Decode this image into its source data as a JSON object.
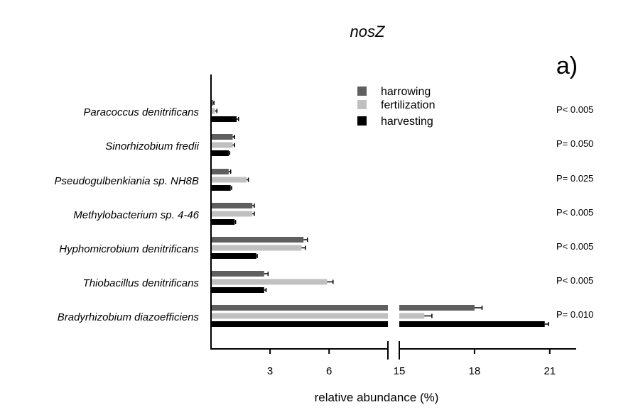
{
  "chart_data": {
    "type": "bar",
    "orientation": "horizontal",
    "title": "nosZ",
    "panel_label": "a)",
    "xlabel": "relative abundance (%)",
    "ylabel": "",
    "x_axis_break": [
      9,
      15
    ],
    "xlim_left": [
      0,
      9
    ],
    "xlim_right": [
      15,
      22.2
    ],
    "xticks": [
      3,
      6,
      15,
      18,
      21
    ],
    "grid": false,
    "legend_position": "top-center",
    "categories": [
      "Paracoccus denitrificans",
      "Sinorhizobium fredii",
      "Pseudogulbenkiania sp. NH8B",
      "Methylobacterium sp. 4-46",
      "Hyphomicrobium denitrificans",
      "Thiobacillus denitrificans",
      "Bradyrhizobium diazoefficiens"
    ],
    "p_values": [
      "P< 0.005",
      "P= 0.050",
      "P= 0.025",
      "P< 0.005",
      "P< 0.005",
      "P< 0.005",
      "P= 0.010"
    ],
    "series": [
      {
        "name": "harrowing",
        "color": "#5f5f5f",
        "values": [
          0.1,
          1.1,
          0.9,
          2.1,
          4.7,
          2.7,
          18.0
        ],
        "errors": [
          0.05,
          0.1,
          0.1,
          0.1,
          0.2,
          0.2,
          0.3
        ]
      },
      {
        "name": "fertilization",
        "color": "#c0c0c0",
        "values": [
          0.2,
          1.1,
          1.8,
          2.1,
          4.6,
          5.9,
          16.0
        ],
        "errors": [
          0.1,
          0.1,
          0.1,
          0.1,
          0.2,
          0.3,
          0.3
        ]
      },
      {
        "name": "harvesting",
        "color": "#000000",
        "values": [
          1.3,
          0.9,
          1.0,
          1.2,
          2.3,
          2.7,
          20.8
        ],
        "errors": [
          0.1,
          0.05,
          0.05,
          0.05,
          0.05,
          0.1,
          0.15
        ]
      }
    ]
  }
}
